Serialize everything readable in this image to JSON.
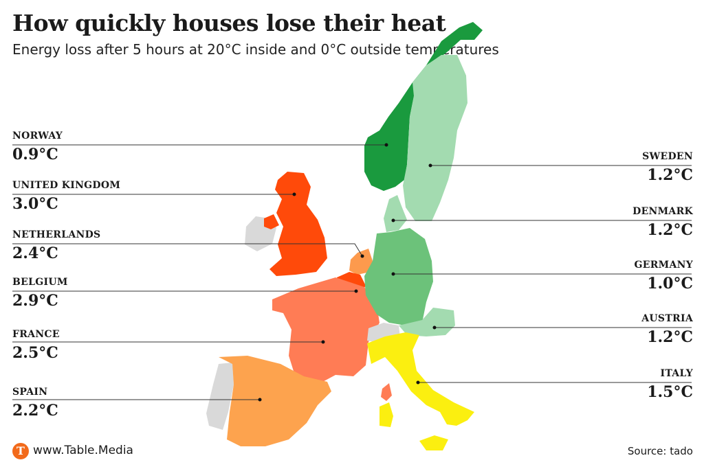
{
  "header": {
    "title": "How quickly houses lose their heat",
    "subtitle": "Energy loss after 5 hours at 20°C inside and 0°C outside temperatures"
  },
  "countries": {
    "norway": {
      "name": "NORWAY",
      "value": "0.9°C",
      "color": "#1a9a3e"
    },
    "uk": {
      "name": "UNITED KINGDOM",
      "value": "3.0°C",
      "color": "#ff4a0a"
    },
    "netherlands": {
      "name": "NETHERLANDS",
      "value": "2.4°C",
      "color": "#fd9a4d"
    },
    "belgium": {
      "name": "BELGIUM",
      "value": "2.9°C",
      "color": "#ff4a0a"
    },
    "france": {
      "name": "FRANCE",
      "value": "2.5°C",
      "color": "#ff7c55"
    },
    "spain": {
      "name": "SPAIN",
      "value": "2.2°C",
      "color": "#fda34e"
    },
    "sweden": {
      "name": "SWEDEN",
      "value": "1.2°C",
      "color": "#a3dbb0"
    },
    "denmark": {
      "name": "DENMARK",
      "value": "1.2°C",
      "color": "#a3dbb0"
    },
    "germany": {
      "name": "GERMANY",
      "value": "1.0°C",
      "color": "#6cc27a"
    },
    "austria": {
      "name": "AUSTRIA",
      "value": "1.2°C",
      "color": "#a3dbb0"
    },
    "italy": {
      "name": "ITALY",
      "value": "1.5°C",
      "color": "#fbef10"
    }
  },
  "no_data_color": "#d9d9d9",
  "footer": {
    "logo_letter": "T",
    "site": "www.Table.Media",
    "source": "Source: tado"
  }
}
